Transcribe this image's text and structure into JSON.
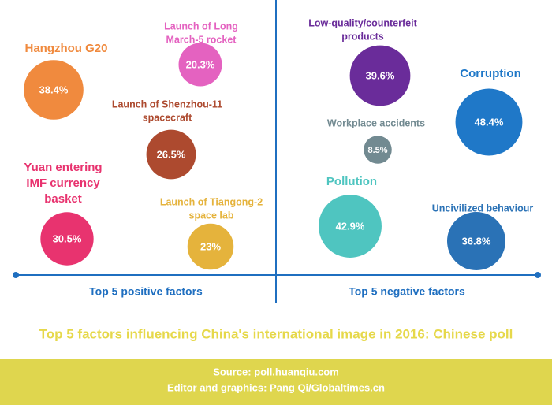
{
  "chart_data": [
    {
      "type": "bubble",
      "title": "Top 5 positive factors",
      "categories": [
        [
          "Hangzhou G20"
        ],
        [
          "Launch of Long",
          "March-5 rocket"
        ],
        [
          "Launch of Shenzhou-11",
          "spacecraft"
        ],
        [
          "Yuan entering",
          "IMF currency",
          "basket"
        ],
        [
          "Launch of Tiangong-2",
          "space lab"
        ]
      ],
      "values": [
        38.4,
        20.3,
        26.5,
        30.5,
        23
      ],
      "value_labels": [
        "38.4%",
        "20.3%",
        "26.5%",
        "30.5%",
        "23%"
      ],
      "colors": [
        "#f08a3e",
        "#e462c0",
        "#ad4a2f",
        "#e8336f",
        "#e5b33c"
      ]
    },
    {
      "type": "bubble",
      "title": "Top 5 negative factors",
      "categories": [
        [
          "Low-quality/counterfeit",
          "products"
        ],
        [
          "Corruption"
        ],
        [
          "Workplace accidents"
        ],
        [
          "Pollution"
        ],
        [
          "Uncivilized behaviour"
        ]
      ],
      "values": [
        39.6,
        48.4,
        8.5,
        42.9,
        36.8
      ],
      "value_labels": [
        "39.6%",
        "48.4%",
        "8.5%",
        "42.9%",
        "36.8%"
      ],
      "colors": [
        "#6a2c9a",
        "#1f78c8",
        "#728a91",
        "#4fc5c0",
        "#2a72b6"
      ]
    }
  ],
  "title": "Top 5 factors influencing China's international image in 2016: Chinese poll",
  "footer": [
    "Source: poll.huanqiu.com",
    "Editor and graphics: Pang Qi/Globaltimes.cn"
  ]
}
